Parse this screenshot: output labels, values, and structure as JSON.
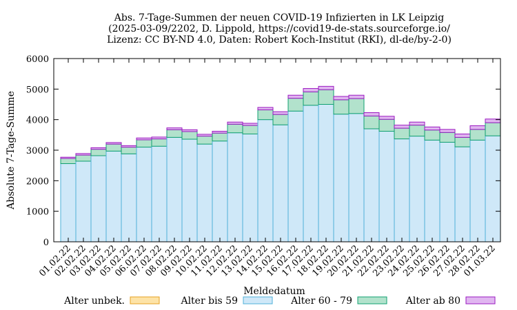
{
  "chart_data": {
    "type": "bar",
    "stacked": true,
    "title_lines": [
      "Abs. 7-Tage-Summen der neuen COVID-19 Infizierten in LK Leipzig",
      "(2025-03-09/2202, D. Lippold, https://covid19-de-stats.sourceforge.io/",
      "Lizenz: CC BY-ND 4.0, Daten: Robert Koch-Institut (RKI), dl-de/by-2-0)"
    ],
    "xlabel": "Meldedatum",
    "ylabel": "Absolute 7-Tage-Summe",
    "ylim": [
      0,
      6000
    ],
    "yticks": [
      0,
      1000,
      2000,
      3000,
      4000,
      5000,
      6000
    ],
    "grid": false,
    "legend_position": "bottom",
    "categories": [
      "01.02.22",
      "02.02.22",
      "03.02.22",
      "04.02.22",
      "05.02.22",
      "06.02.22",
      "07.02.22",
      "08.02.22",
      "09.02.22",
      "10.02.22",
      "11.02.22",
      "12.02.22",
      "13.02.22",
      "14.02.22",
      "15.02.22",
      "16.02.22",
      "17.02.22",
      "18.02.22",
      "19.02.22",
      "20.02.22",
      "21.02.22",
      "22.02.22",
      "23.02.22",
      "24.02.22",
      "25.02.22",
      "26.02.22",
      "27.02.22",
      "28.02.22",
      "01.03.22"
    ],
    "series": [
      {
        "name": "Alter unbek.",
        "fill": "#fde3a7",
        "stroke": "#e6a020",
        "values": [
          0,
          0,
          0,
          0,
          0,
          0,
          0,
          0,
          0,
          0,
          0,
          0,
          0,
          0,
          0,
          0,
          0,
          0,
          0,
          0,
          0,
          0,
          0,
          0,
          0,
          0,
          0,
          0,
          0
        ]
      },
      {
        "name": "Alter bis 59",
        "fill": "#cfe8f8",
        "stroke": "#4fb0d8",
        "values": [
          2560,
          2640,
          2820,
          2970,
          2880,
          3100,
          3130,
          3420,
          3360,
          3200,
          3300,
          3570,
          3530,
          4000,
          3830,
          4280,
          4470,
          4500,
          4180,
          4200,
          3700,
          3620,
          3370,
          3460,
          3330,
          3260,
          3110,
          3330,
          3470
        ]
      },
      {
        "name": "Alter 60 - 79",
        "fill": "#b2e2cc",
        "stroke": "#10a070",
        "values": [
          170,
          200,
          210,
          230,
          220,
          240,
          240,
          250,
          250,
          260,
          260,
          280,
          280,
          320,
          340,
          420,
          440,
          480,
          470,
          490,
          420,
          390,
          350,
          360,
          330,
          320,
          310,
          350,
          430
        ]
      },
      {
        "name": "Alter ab 80",
        "fill": "#e0b6f0",
        "stroke": "#9a18c0",
        "values": [
          40,
          50,
          50,
          50,
          50,
          60,
          60,
          60,
          60,
          60,
          60,
          70,
          70,
          80,
          90,
          100,
          110,
          110,
          110,
          110,
          110,
          100,
          100,
          100,
          100,
          100,
          110,
          120,
          120
        ]
      }
    ]
  }
}
